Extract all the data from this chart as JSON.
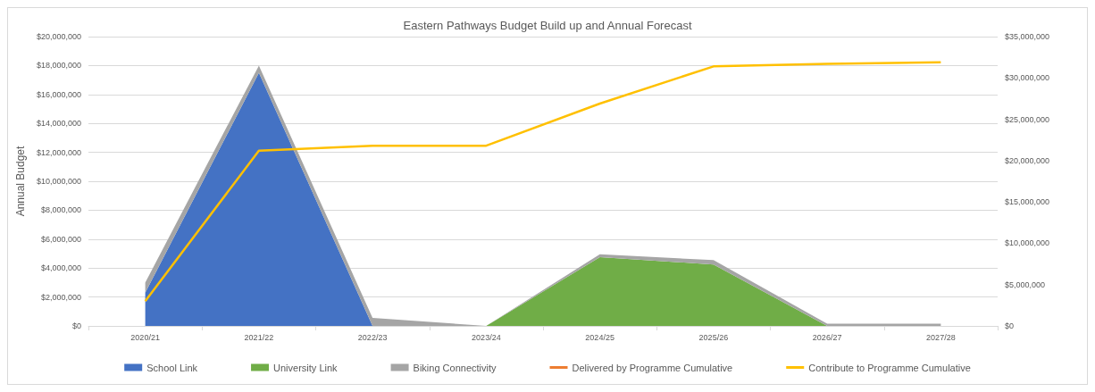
{
  "chart_data": {
    "type": "area",
    "title": "Eastern Pathways Budget Build up and Annual Forecast",
    "ylabel": "Annual Budget",
    "categories": [
      "2020/21",
      "2021/22",
      "2022/23",
      "2023/24",
      "2024/25",
      "2025/26",
      "2026/27",
      "2027/28"
    ],
    "stacked": true,
    "series": [
      {
        "name": "School Link",
        "color": "#4472c4",
        "values": [
          2300000,
          17500000,
          0,
          null,
          null,
          null,
          null,
          null
        ]
      },
      {
        "name": "University Link",
        "color": "#70ad47",
        "values": [
          null,
          null,
          null,
          0,
          4750000,
          4250000,
          0,
          null
        ]
      },
      {
        "name": "Biking Connectivity",
        "color": "#a5a5a5",
        "values": [
          700000,
          500000,
          550000,
          0,
          200000,
          300000,
          150000,
          150000
        ]
      },
      {
        "name": "Delivered by Programme Cumulative",
        "color": "#ed7d31",
        "type": "line",
        "axis": "y2",
        "values": [
          null,
          null,
          null,
          null,
          null,
          null,
          null,
          null
        ]
      },
      {
        "name": "Contribute to Programme Cumulative",
        "color": "#ffc000",
        "type": "line",
        "axis": "y2",
        "values": [
          3000000,
          21200000,
          21800000,
          21800000,
          26900000,
          31400000,
          31700000,
          31900000
        ]
      }
    ],
    "ylim": [
      0,
      20000000
    ],
    "yticks": [
      {
        "value": 0,
        "label": "$0"
      },
      {
        "value": 2000000,
        "label": "$2,000,000"
      },
      {
        "value": 4000000,
        "label": "$4,000,000"
      },
      {
        "value": 6000000,
        "label": "$6,000,000"
      },
      {
        "value": 8000000,
        "label": "$8,000,000"
      },
      {
        "value": 10000000,
        "label": "$10,000,000"
      },
      {
        "value": 12000000,
        "label": "$12,000,000"
      },
      {
        "value": 14000000,
        "label": "$14,000,000"
      },
      {
        "value": 16000000,
        "label": "$16,000,000"
      },
      {
        "value": 18000000,
        "label": "$18,000,000"
      },
      {
        "value": 20000000,
        "label": "$20,000,000"
      }
    ],
    "y2lim": [
      0,
      35000000
    ],
    "y2ticks": [
      {
        "value": 0,
        "label": "$0"
      },
      {
        "value": 5000000,
        "label": "$5,000,000"
      },
      {
        "value": 10000000,
        "label": "$10,000,000"
      },
      {
        "value": 15000000,
        "label": "$15,000,000"
      },
      {
        "value": 20000000,
        "label": "$20,000,000"
      },
      {
        "value": 25000000,
        "label": "$25,000,000"
      },
      {
        "value": 30000000,
        "label": "$30,000,000"
      },
      {
        "value": 35000000,
        "label": "$35,000,000"
      }
    ],
    "grid": "y",
    "legend": "bottom",
    "marker": "none",
    "line_style": "solid"
  }
}
